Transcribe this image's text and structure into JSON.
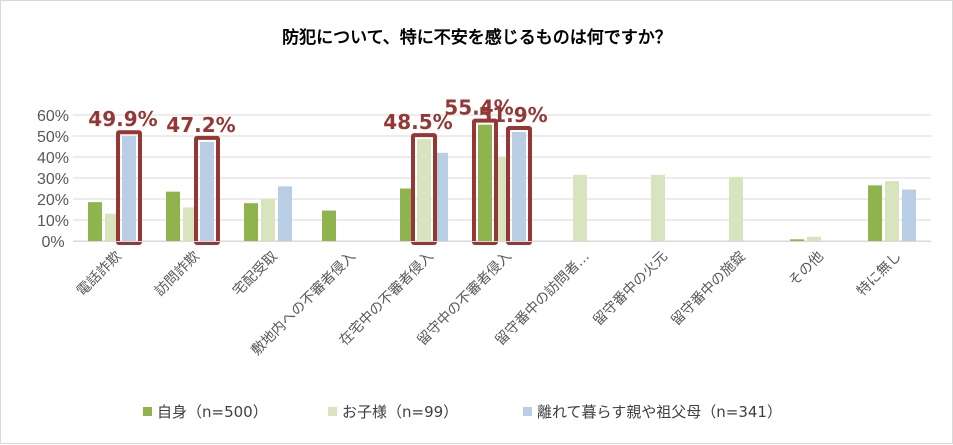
{
  "chart_data": {
    "type": "bar",
    "title": "防犯について、特に不安を感じるものは何ですか？",
    "categories": [
      "電話詐欺",
      "訪問詐欺",
      "宅配受取",
      "敷地内への不審者侵入",
      "在宅中の不審者侵入",
      "留守中の不審者侵入",
      "留守番中の訪問者…",
      "留守番中の火元",
      "留守番中の施錠",
      "その他",
      "特に無し"
    ],
    "series": [
      {
        "name": "自身（n=500）",
        "color": "#8fb44d",
        "values": [
          18.5,
          23.5,
          18.0,
          14.5,
          25.0,
          55.4,
          0,
          0,
          0,
          0.8,
          26.5
        ]
      },
      {
        "name": "お子様（n=99）",
        "color": "#d7e4bd",
        "values": [
          13.0,
          16.0,
          20.0,
          0,
          48.5,
          40.0,
          31.5,
          31.5,
          30.5,
          2.0,
          28.5
        ]
      },
      {
        "name": "離れて暮らす親や祖父母（n=341）",
        "color": "#b9cde5",
        "values": [
          49.9,
          47.2,
          26.0,
          0,
          42.0,
          51.9,
          0,
          0,
          0,
          0,
          24.5
        ]
      }
    ],
    "highlights": [
      {
        "category_index": 0,
        "series_index": 2,
        "label": "49.9%"
      },
      {
        "category_index": 1,
        "series_index": 2,
        "label": "47.2%"
      },
      {
        "category_index": 4,
        "series_index": 1,
        "label": "48.5%"
      },
      {
        "category_index": 5,
        "series_index": 0,
        "label": "55.4%"
      },
      {
        "category_index": 5,
        "series_index": 2,
        "label": "51.9%"
      }
    ],
    "ylim": [
      0,
      60
    ],
    "yticks": [
      "0%",
      "10%",
      "20%",
      "30%",
      "40%",
      "50%",
      "60%"
    ],
    "grid": true,
    "legend_position": "bottom",
    "highlight_color": "#953735"
  }
}
